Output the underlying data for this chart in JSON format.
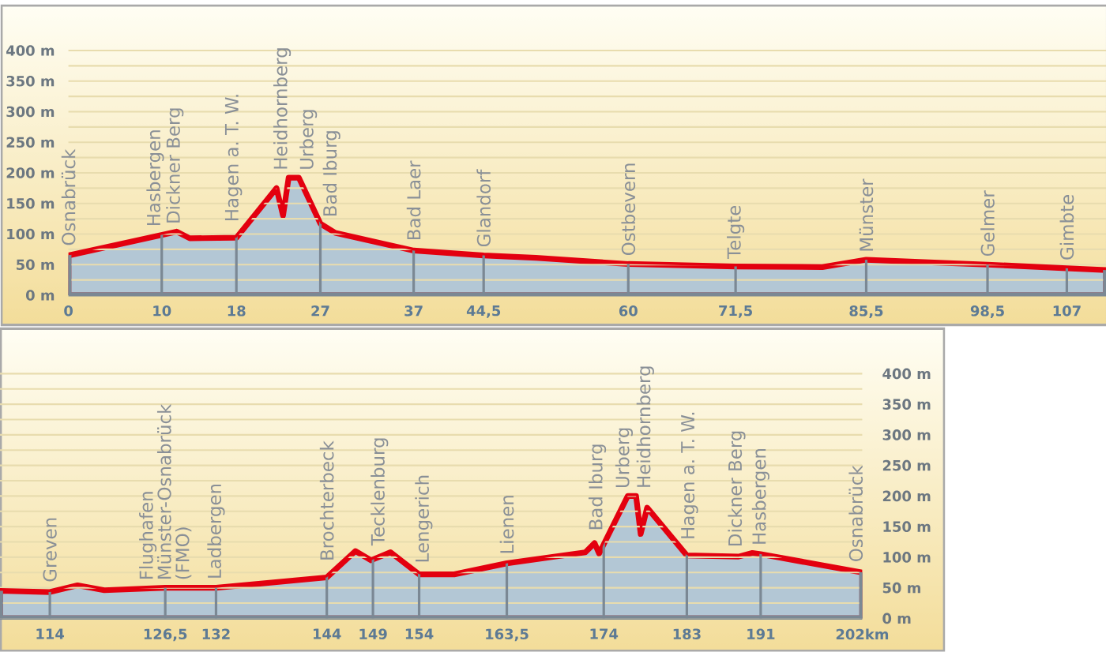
{
  "chart_data": [
    {
      "type": "area",
      "xlim": [
        0,
        111.2
      ],
      "xticks": [
        0,
        10,
        18,
        27,
        37,
        {
          "value": 44.5,
          "label": "44,5"
        },
        60,
        {
          "value": 71.5,
          "label": "71,5"
        },
        {
          "value": 85.5,
          "label": "85,5"
        },
        {
          "value": 98.5,
          "label": "98,5"
        },
        107
      ],
      "ylim": [
        0,
        400
      ],
      "yticks": [
        {
          "value": 0,
          "label": "0 m"
        },
        {
          "value": 25,
          "label": null
        },
        {
          "value": 50,
          "label": "50 m"
        },
        {
          "value": 75,
          "label": null
        },
        {
          "value": 100,
          "label": "100 m"
        },
        {
          "value": 125,
          "label": null
        },
        {
          "value": 150,
          "label": "150 m"
        },
        {
          "value": 175,
          "label": null
        },
        {
          "value": 200,
          "label": "200 m"
        },
        {
          "value": 225,
          "label": null
        },
        {
          "value": 250,
          "label": "250 m"
        },
        {
          "value": 275,
          "label": null
        },
        {
          "value": 300,
          "label": "300 m"
        },
        {
          "value": 325,
          "label": null
        },
        {
          "value": 350,
          "label": "350 m"
        },
        {
          "value": 375,
          "label": null
        },
        {
          "value": 400,
          "label": "400 m"
        }
      ],
      "grid": true,
      "series": [
        {
          "color": "#b3c7d5",
          "x": [
            0,
            11.6,
            13.0,
            18,
            22.3,
            23.0,
            23.6,
            24.7,
            27,
            28.6,
            37,
            44.5,
            50.1,
            60,
            71.5,
            80.8,
            85.5,
            98.5,
            107,
            111.2
          ],
          "values": [
            65,
            104,
            93,
            94,
            175,
            130,
            192,
            192,
            117,
            102,
            73,
            65,
            61,
            51,
            47,
            46,
            58,
            50,
            44,
            41
          ]
        }
      ],
      "annotations": [
        {
          "text": "Osnabrück",
          "x": 0,
          "y": 65
        },
        {
          "text": "Hasbergen",
          "x": 9.3,
          "y": 96
        },
        {
          "text": "Dickner Berg",
          "x": 11.4,
          "y": 103
        },
        {
          "text": "Hagen a. T. W.",
          "x": 17.7,
          "y": 94
        },
        {
          "text": "Heidhornberg",
          "x": 22.9,
          "y": 136
        },
        {
          "text": "Urberg",
          "x": 25.7,
          "y": 159
        },
        {
          "text": "Bad Iburg",
          "x": 28.2,
          "y": 106
        },
        {
          "text": "Bad Laer",
          "x": 37,
          "y": 73
        },
        {
          "text": "Glandorf",
          "x": 44.5,
          "y": 65
        },
        {
          "text": "Ostbevern",
          "x": 60,
          "y": 51
        },
        {
          "text": "Telgte",
          "x": 71.5,
          "y": 47
        },
        {
          "text": "Münster",
          "x": 85.5,
          "y": 58
        },
        {
          "text": "Gelmer",
          "x": 98.5,
          "y": 50
        },
        {
          "text": "Gimbte",
          "x": 107,
          "y": 44
        }
      ]
    },
    {
      "type": "area",
      "xlim": [
        108.6,
        202
      ],
      "xticks": [
        114,
        {
          "value": 126.5,
          "label": "126,5"
        },
        132,
        144,
        149,
        154,
        {
          "value": 163.5,
          "label": "163,5"
        },
        174,
        183,
        191,
        {
          "value": 202,
          "label": "202km"
        }
      ],
      "ylim": [
        0,
        400
      ],
      "yticks": [
        {
          "value": 0,
          "label": "0 m"
        },
        {
          "value": 25,
          "label": null
        },
        {
          "value": 50,
          "label": "50 m"
        },
        {
          "value": 75,
          "label": null
        },
        {
          "value": 100,
          "label": "100 m"
        },
        {
          "value": 125,
          "label": null
        },
        {
          "value": 150,
          "label": "150 m"
        },
        {
          "value": 175,
          "label": null
        },
        {
          "value": 200,
          "label": "200 m"
        },
        {
          "value": 225,
          "label": null
        },
        {
          "value": 250,
          "label": "250 m"
        },
        {
          "value": 275,
          "label": null
        },
        {
          "value": 300,
          "label": "300 m"
        },
        {
          "value": 325,
          "label": null
        },
        {
          "value": 350,
          "label": "350 m"
        },
        {
          "value": 375,
          "label": null
        },
        {
          "value": 400,
          "label": "400 m"
        }
      ],
      "grid": true,
      "series": [
        {
          "color": "#b3c7d5",
          "x": [
            108.6,
            114,
            117.0,
            119.9,
            126.5,
            132,
            144,
            147.1,
            148.8,
            150.9,
            154,
            157.8,
            163.5,
            172.0,
            173.0,
            173.5,
            176.6,
            177.5,
            178.0,
            178.7,
            183,
            188.6,
            190.1,
            191,
            202
          ],
          "values": [
            45,
            43,
            54,
            46,
            50,
            50,
            67,
            110,
            95,
            108,
            72,
            72,
            90,
            108,
            123,
            106,
            200,
            200,
            138,
            181,
            103,
            101,
            107,
            105,
            75
          ]
        }
      ],
      "annotations": [
        {
          "text": "Greven",
          "x": 114,
          "y": 43
        },
        {
          "text": "Flughafen Münster-Osnabrück (FMO)",
          "x": 126.5,
          "y": 50
        },
        {
          "text": "Ladbergen",
          "x": 132,
          "y": 50
        },
        {
          "text": "Brochterbeck",
          "x": 144,
          "y": 67
        },
        {
          "text": "Tecklenburg",
          "x": 149.7,
          "y": 101
        },
        {
          "text": "Lengerich",
          "x": 154.5,
          "y": 72
        },
        {
          "text": "Lienen",
          "x": 163.5,
          "y": 90
        },
        {
          "text": "Bad Iburg",
          "x": 173.3,
          "y": 113
        },
        {
          "text": "Urberg",
          "x": 176.2,
          "y": 188
        },
        {
          "text": "Heidhornberg",
          "x": 178.5,
          "y": 169
        },
        {
          "text": "Hagen a. T. W.",
          "x": 183.3,
          "y": 103
        },
        {
          "text": "Dickner Berg",
          "x": 188.4,
          "y": 101
        },
        {
          "text": "Hasbergen",
          "x": 191,
          "y": 105
        },
        {
          "text": "Osnabrück",
          "x": 201.3,
          "y": 77
        }
      ]
    }
  ]
}
